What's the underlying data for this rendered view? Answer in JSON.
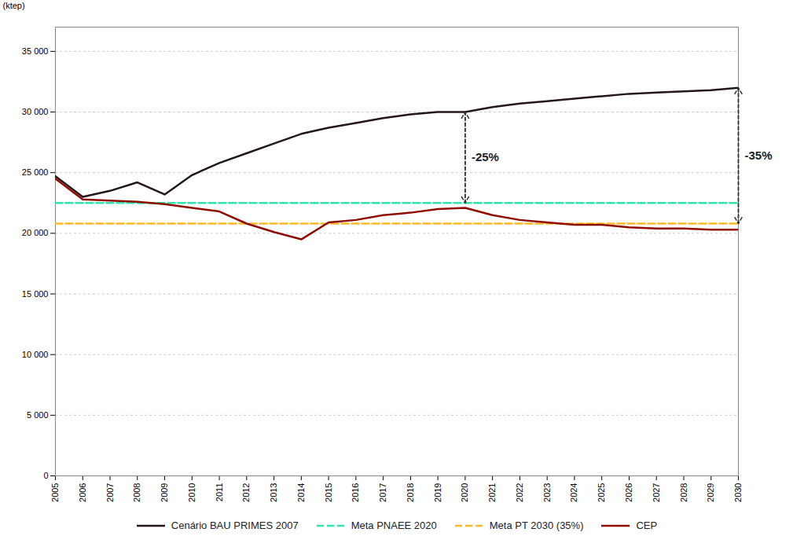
{
  "chart_data": {
    "type": "line",
    "x": [
      2005,
      2006,
      2007,
      2008,
      2009,
      2010,
      2011,
      2012,
      2013,
      2014,
      2015,
      2016,
      2017,
      2018,
      2019,
      2020,
      2021,
      2022,
      2023,
      2024,
      2025,
      2026,
      2027,
      2028,
      2029,
      2030
    ],
    "xlim": [
      2005,
      2030
    ],
    "xticks": [
      2005,
      2006,
      2007,
      2008,
      2009,
      2010,
      2011,
      2012,
      2013,
      2014,
      2015,
      2016,
      2017,
      2018,
      2019,
      2020,
      2021,
      2022,
      2023,
      2024,
      2025,
      2026,
      2027,
      2028,
      2029,
      2030
    ],
    "ylabel": "(ktep)",
    "ylim": [
      0,
      37000
    ],
    "yticks": [
      0,
      {
        "value": 5000,
        "label": "5 000"
      },
      {
        "value": 10000,
        "label": "10 000"
      },
      {
        "value": 15000,
        "label": "15 000"
      },
      {
        "value": 20000,
        "label": "20 000"
      },
      {
        "value": 25000,
        "label": "25 000"
      },
      {
        "value": 30000,
        "label": "30 000"
      },
      {
        "value": 35000,
        "label": "35 000"
      }
    ],
    "grid": "y",
    "legend": "bottom",
    "series": [
      {
        "name": "Cenário BAU PRIMES 2007",
        "line_style": "solid",
        "values": [
          24700,
          23000,
          23500,
          24200,
          23200,
          24800,
          25800,
          26600,
          27400,
          28200,
          28700,
          29100,
          29500,
          29800,
          30000,
          30000,
          30400,
          30700,
          30900,
          31100,
          31300,
          31500,
          31600,
          31700,
          31800,
          32000
        ]
      },
      {
        "name": "Meta PNAEE 2020",
        "line_style": "dashed",
        "values": [
          22500,
          22500,
          22500,
          22500,
          22500,
          22500,
          22500,
          22500,
          22500,
          22500,
          22500,
          22500,
          22500,
          22500,
          22500,
          22500,
          22500,
          22500,
          22500,
          22500,
          22500,
          22500,
          22500,
          22500,
          22500,
          22500
        ]
      },
      {
        "name": "Meta PT 2030 (35%)",
        "line_style": "dashed",
        "values": [
          20800,
          20800,
          20800,
          20800,
          20800,
          20800,
          20800,
          20800,
          20800,
          20800,
          20800,
          20800,
          20800,
          20800,
          20800,
          20800,
          20800,
          20800,
          20800,
          20800,
          20800,
          20800,
          20800,
          20800,
          20800,
          20800
        ]
      },
      {
        "name": "CEP",
        "line_style": "solid",
        "values": [
          24500,
          22800,
          22700,
          22600,
          22400,
          22100,
          21800,
          20800,
          20100,
          19500,
          20900,
          21100,
          21500,
          21700,
          22000,
          22100,
          21500,
          21100,
          20900,
          20700,
          20700,
          20500,
          20400,
          20400,
          20300,
          20300
        ]
      }
    ],
    "annotations": [
      {
        "text": "-25%",
        "x": 2020,
        "y_top": 30000,
        "y_bottom": 22500
      },
      {
        "text": "-35%",
        "x": 2030,
        "y_top": 32000,
        "y_bottom": 20800
      }
    ]
  }
}
